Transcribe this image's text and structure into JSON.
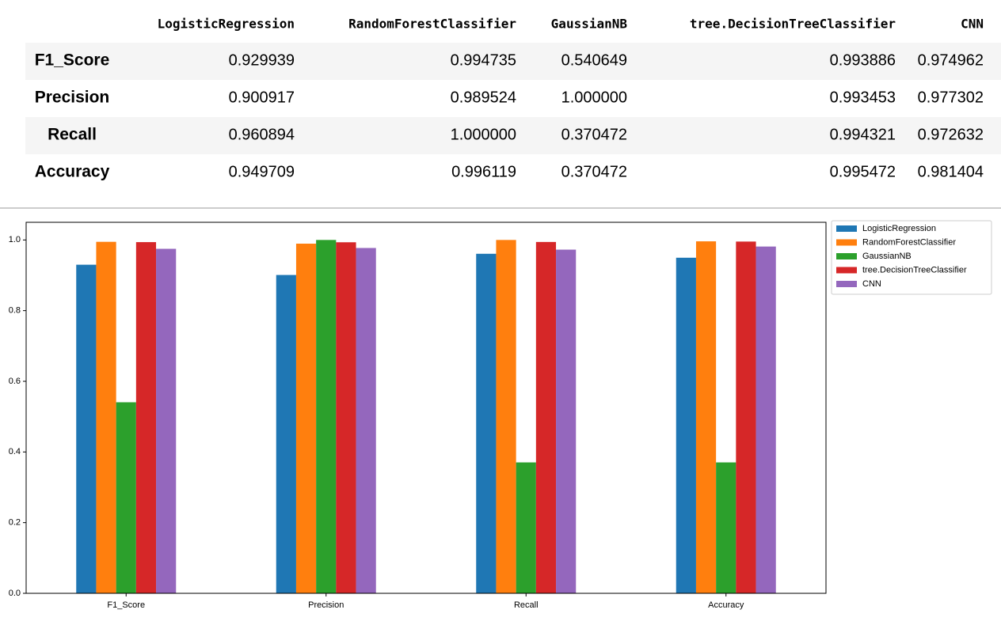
{
  "table": {
    "columns": [
      "LogisticRegression",
      "RandomForestClassifier",
      "GaussianNB",
      "tree.DecisionTreeClassifier",
      "CNN"
    ],
    "rows": [
      [
        "F1_Score",
        "0.929939",
        "0.994735",
        "0.540649",
        "0.993886",
        "0.974962"
      ],
      [
        "Precision",
        "0.900917",
        "0.989524",
        "1.000000",
        "0.993453",
        "0.977302"
      ],
      [
        "Recall",
        "0.960894",
        "1.000000",
        "0.370472",
        "0.994321",
        "0.972632"
      ],
      [
        "Accuracy",
        "0.949709",
        "0.996119",
        "0.370472",
        "0.995472",
        "0.981404"
      ]
    ]
  },
  "chart_data": {
    "type": "bar",
    "categories": [
      "F1_Score",
      "Precision",
      "Recall",
      "Accuracy"
    ],
    "series": [
      {
        "name": "LogisticRegression",
        "color": "#1f77b4",
        "values": [
          0.929939,
          0.900917,
          0.960894,
          0.949709
        ]
      },
      {
        "name": "RandomForestClassifier",
        "color": "#ff7f0e",
        "values": [
          0.994735,
          0.989524,
          1.0,
          0.996119
        ]
      },
      {
        "name": "GaussianNB",
        "color": "#2ca02c",
        "values": [
          0.540649,
          1.0,
          0.370472,
          0.370472
        ]
      },
      {
        "name": "tree.DecisionTreeClassifier",
        "color": "#d62728",
        "values": [
          0.993886,
          0.993453,
          0.994321,
          0.995472
        ]
      },
      {
        "name": "CNN",
        "color": "#9467bd",
        "values": [
          0.974962,
          0.977302,
          0.972632,
          0.981404
        ]
      }
    ],
    "ylim": [
      0,
      1.05
    ],
    "yticks": [
      {
        "value": 0,
        "label": "0.0"
      },
      0.2,
      0.4,
      0.6,
      0.8,
      {
        "value": 1,
        "label": "1.0"
      }
    ],
    "legend": "right"
  }
}
